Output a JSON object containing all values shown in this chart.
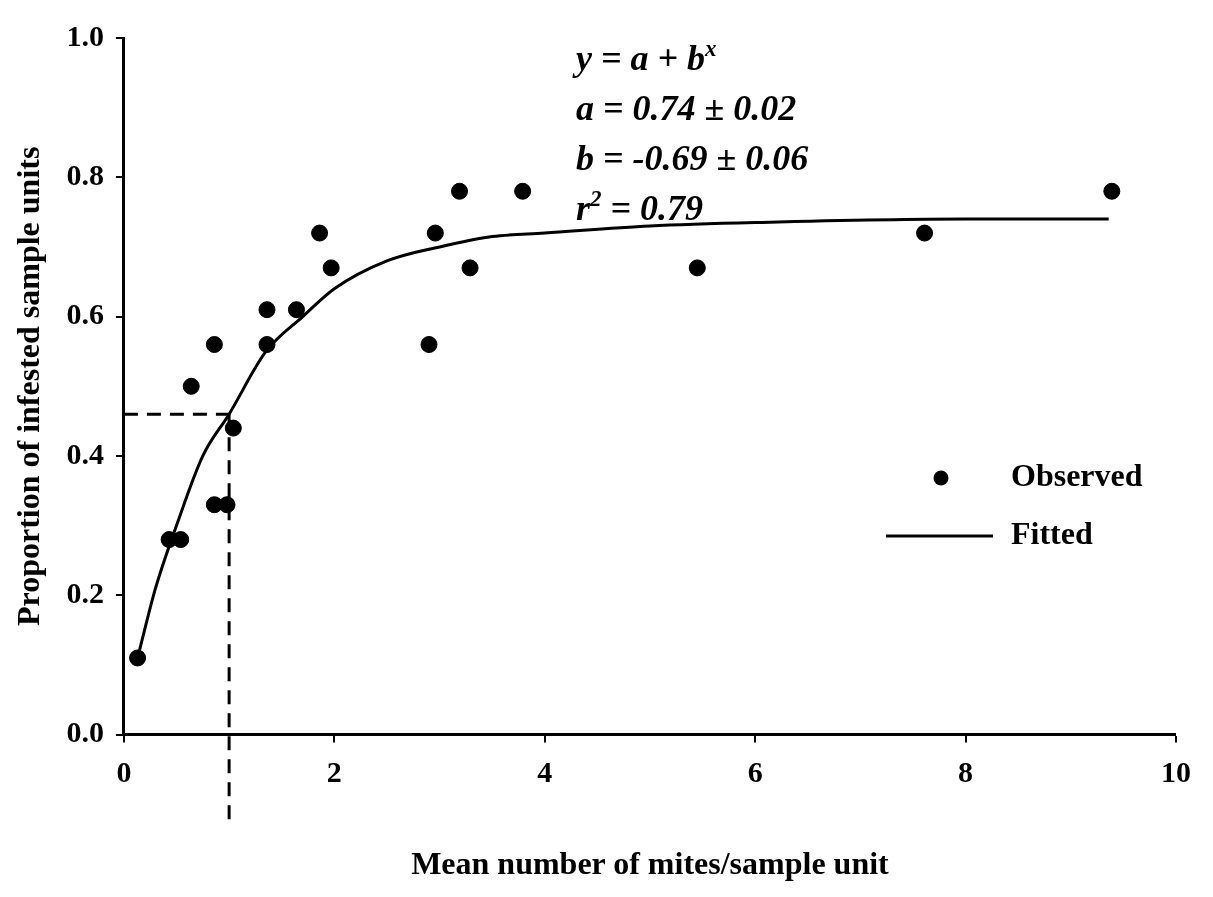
{
  "chart_data": {
    "type": "scatter",
    "xlabel": "Mean number of mites/sample unit",
    "ylabel": "Proportion of infested sample units",
    "series": [
      {
        "name": "Observed",
        "color": "#000000",
        "marker": "circle",
        "x": [
          0.13,
          0.43,
          0.54,
          0.64,
          0.86,
          0.86,
          0.98,
          1.04,
          1.36,
          1.36,
          1.64,
          1.86,
          1.97,
          2.9,
          2.96,
          3.19,
          3.29,
          3.79,
          5.45,
          7.61,
          9.39
        ],
        "values": [
          0.11,
          0.28,
          0.28,
          0.5,
          0.56,
          0.33,
          0.33,
          0.44,
          0.61,
          0.56,
          0.61,
          0.72,
          0.67,
          0.56,
          0.72,
          0.78,
          0.67,
          0.78,
          0.67,
          0.72,
          0.78
        ]
      },
      {
        "name": "Fitted",
        "type": "line",
        "color": "#000000",
        "marker": "none",
        "line_style": "solid",
        "x": [
          0.13,
          0.3,
          0.5,
          0.75,
          1.0,
          1.35,
          1.7,
          2.0,
          2.5,
          3.0,
          3.5,
          4.0,
          5.0,
          6.0,
          8.0,
          9.36
        ],
        "values": [
          0.11,
          0.21,
          0.3,
          0.4,
          0.46,
          0.55,
          0.6,
          0.64,
          0.68,
          0.7,
          0.715,
          0.72,
          0.73,
          0.735,
          0.74,
          0.74
        ]
      }
    ],
    "xlim": [
      0,
      10
    ],
    "xticks": [
      0,
      2,
      4,
      6,
      8,
      10
    ],
    "ylim": [
      0,
      1
    ],
    "yticks": [
      {
        "value": 0,
        "label": "0.0"
      },
      {
        "value": 0.2,
        "label": "0.2"
      },
      {
        "value": 0.4,
        "label": "0.4"
      },
      {
        "value": 0.6,
        "label": "0.6"
      },
      {
        "value": 0.8,
        "label": "0.8"
      },
      {
        "value": 1,
        "label": "1.0"
      }
    ],
    "ref_lines": [
      {
        "axis": "x",
        "value": 1,
        "line_style": "dashed",
        "color": "#000000"
      },
      {
        "axis": "y",
        "value": 0.46,
        "line_style": "dashed",
        "color": "#000000"
      }
    ],
    "annotations": [
      "y = a + b$^{x}$",
      "a = 0.74 ± 0.02",
      "b = -0.69 ± 0.06",
      "r$^{2}$ = 0.79"
    ],
    "grid": false,
    "legend": "right"
  }
}
